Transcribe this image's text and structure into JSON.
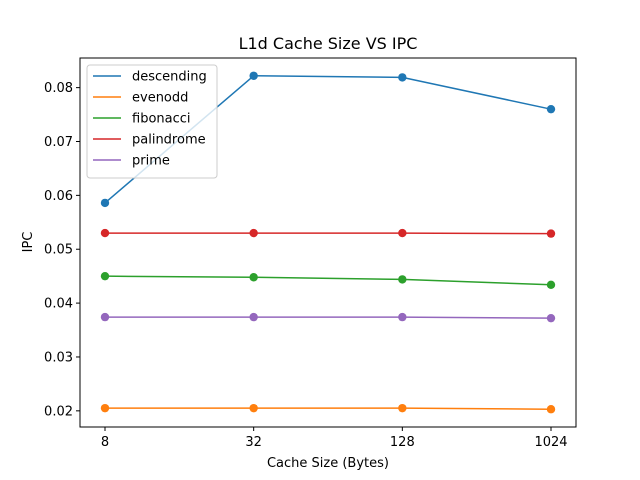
{
  "chart_data": {
    "type": "line",
    "title": "L1d Cache Size VS IPC",
    "xlabel": "Cache Size (Bytes)",
    "ylabel": "IPC",
    "x": [
      8,
      32,
      128,
      1024
    ],
    "x_tick_labels": [
      "8",
      "32",
      "128",
      "1024"
    ],
    "x_scale": "categorical",
    "ylim": [
      0.017,
      0.0855
    ],
    "y_ticks": [
      0.02,
      0.03,
      0.04,
      0.05,
      0.06,
      0.07,
      0.08
    ],
    "y_tick_labels": [
      "0.02",
      "0.03",
      "0.04",
      "0.05",
      "0.06",
      "0.07",
      "0.08"
    ],
    "grid": false,
    "legend_position": "top-left",
    "series": [
      {
        "name": "descending",
        "color": "#1f77b4",
        "values": [
          0.0586,
          0.0822,
          0.0819,
          0.076
        ]
      },
      {
        "name": "evenodd",
        "color": "#ff7f0e",
        "values": [
          0.0205,
          0.0205,
          0.0205,
          0.0203
        ]
      },
      {
        "name": "fibonacci",
        "color": "#2ca02c",
        "values": [
          0.045,
          0.0448,
          0.0444,
          0.0434
        ]
      },
      {
        "name": "palindrome",
        "color": "#d62728",
        "values": [
          0.053,
          0.053,
          0.053,
          0.0529
        ]
      },
      {
        "name": "prime",
        "color": "#9467bd",
        "values": [
          0.0374,
          0.0374,
          0.0374,
          0.0372
        ]
      }
    ]
  }
}
